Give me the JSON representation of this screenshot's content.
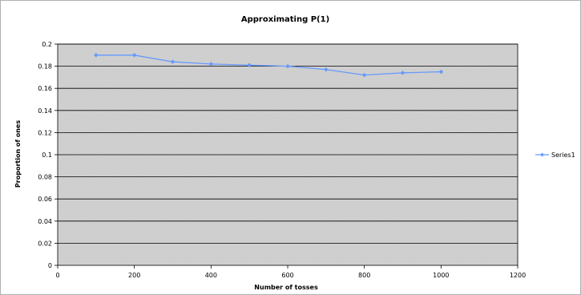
{
  "chart_data": {
    "type": "line",
    "title": "Approximating P(1)",
    "xlabel": "Number of tosses",
    "ylabel": "Proportion of ones",
    "xlim": [
      0,
      1200
    ],
    "ylim": [
      0,
      0.2
    ],
    "xticks": [
      "0",
      "200",
      "400",
      "600",
      "800",
      "1000",
      "1200"
    ],
    "yticks": [
      "0",
      "0.02",
      "0.04",
      "0.06",
      "0.08",
      "0.1",
      "0.12",
      "0.14",
      "0.16",
      "0.18",
      "0.2"
    ],
    "grid": true,
    "legend_position": "right",
    "series": [
      {
        "name": "Series1",
        "color": "#6699ff",
        "x": [
          100,
          200,
          300,
          400,
          500,
          600,
          700,
          800,
          900,
          1000
        ],
        "y": [
          0.19,
          0.19,
          0.184,
          0.182,
          0.181,
          0.18,
          0.177,
          0.172,
          0.174,
          0.175
        ]
      }
    ]
  }
}
